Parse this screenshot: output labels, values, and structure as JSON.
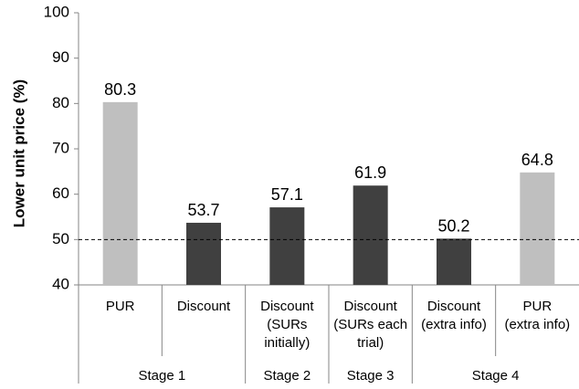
{
  "chart_data": {
    "type": "bar",
    "ylabel": "Lower unit price (%)",
    "ylim": [
      40,
      100
    ],
    "yticks": [
      "40",
      "50",
      "60",
      "70",
      "80",
      "90",
      "100"
    ],
    "reference_line": 50,
    "grid": false,
    "legend": "none",
    "categories": [
      [
        "PUR"
      ],
      [
        "Discount"
      ],
      [
        "Discount",
        "(SURs",
        "initially)"
      ],
      [
        "Discount",
        "(SURs each",
        "trial)"
      ],
      [
        "Discount",
        "(extra info)"
      ],
      [
        "PUR",
        "(extra info)"
      ]
    ],
    "values": [
      80.3,
      53.7,
      57.1,
      61.9,
      50.2,
      64.8
    ],
    "value_labels": [
      "80.3",
      "53.7",
      "57.1",
      "61.9",
      "50.2",
      "64.8"
    ],
    "bar_colors": [
      "#bfbfbf",
      "#404040",
      "#404040",
      "#404040",
      "#404040",
      "#bfbfbf"
    ],
    "groups": [
      {
        "label": "Stage 1",
        "span": [
          0,
          1
        ]
      },
      {
        "label": "Stage 2",
        "span": [
          2,
          2
        ]
      },
      {
        "label": "Stage  3",
        "span": [
          3,
          3
        ]
      },
      {
        "label": "Stage 4",
        "span": [
          4,
          5
        ]
      }
    ]
  }
}
